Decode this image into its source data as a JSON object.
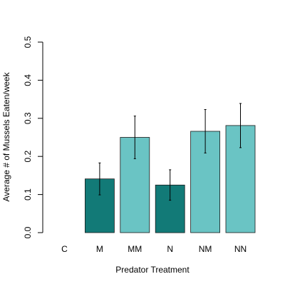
{
  "chart_data": {
    "type": "bar",
    "title": "",
    "xlabel": "Predator Treatment",
    "ylabel": "Average # of Mussels Eaten/week",
    "categories": [
      "C",
      "M",
      "MM",
      "N",
      "NM",
      "NN"
    ],
    "values": [
      0.0,
      0.141,
      0.25,
      0.125,
      0.266,
      0.281
    ],
    "error_low": [
      0.0,
      0.099,
      0.194,
      0.085,
      0.209,
      0.223
    ],
    "error_high": [
      0.0,
      0.183,
      0.306,
      0.165,
      0.323,
      0.339
    ],
    "bar_colors": [
      "#127a77",
      "#127a77",
      "#6ac4c4",
      "#127a77",
      "#6ac4c4",
      "#6ac4c4"
    ],
    "ylim": [
      0,
      0.5
    ],
    "yticks": [
      "0.0",
      "0.1",
      "0.2",
      "0.3",
      "0.4",
      "0.5"
    ],
    "grid": false,
    "legend": "none"
  }
}
